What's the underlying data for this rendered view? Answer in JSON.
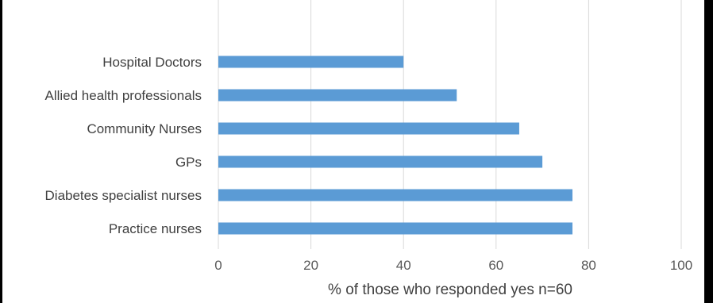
{
  "chart_data": {
    "type": "bar",
    "orientation": "horizontal",
    "categories": [
      "Hospital Doctors",
      "Allied health professionals",
      "Community Nurses",
      "GPs",
      "Diabetes specialist nurses",
      "Practice nurses"
    ],
    "values": [
      40,
      51.5,
      65,
      70,
      76.5,
      76.5
    ],
    "title": "",
    "xlabel": "% of those who responded yes n=60",
    "ylabel": "",
    "xlim": [
      0,
      100
    ],
    "xticks": [
      "0",
      "20",
      "40",
      "60",
      "80",
      "100"
    ],
    "grid": "vertical",
    "legend": "none",
    "bar_color": "#5B9BD5",
    "grid_color": "#D9D9D9"
  }
}
